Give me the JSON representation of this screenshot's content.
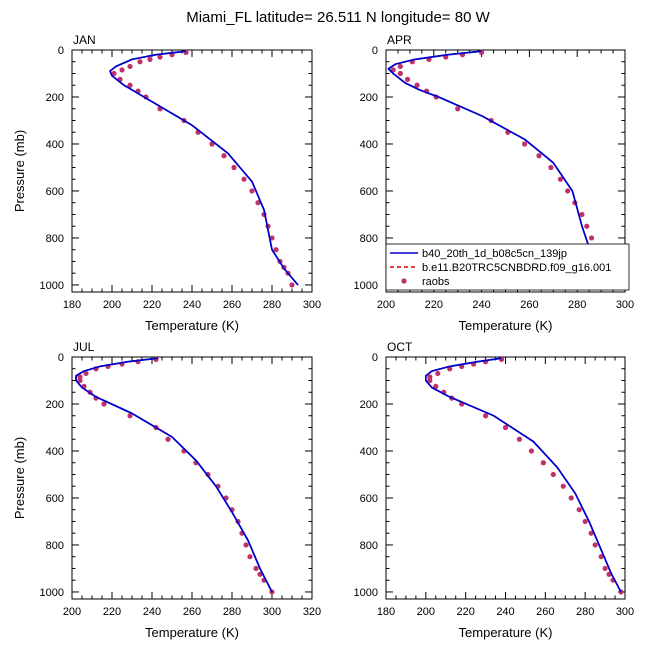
{
  "figure": {
    "title": "Miami_FL  latitude= 26.511 N longitude= 80 W"
  },
  "legend": {
    "entries": [
      {
        "label": "b40_20th_1d_b08c5cn_139jp",
        "color": "#0000cc",
        "style": "solid-line"
      },
      {
        "label": "b.e11.B20TRC5CNBDRD.f09_g16.001",
        "color": "#dd0000",
        "style": "dashed-line"
      },
      {
        "label": "raobs",
        "color": "#c0306a",
        "style": "dots"
      }
    ]
  },
  "chart_data": [
    {
      "type": "line",
      "panel": "JAN",
      "xlabel": "Temperature (K)",
      "ylabel": "Pressure (mb)",
      "xlim": [
        180,
        300
      ],
      "ylim": [
        0,
        1030
      ],
      "y_inverted": true,
      "xticks": [
        180,
        200,
        220,
        240,
        260,
        280,
        300
      ],
      "yticks": [
        0,
        200,
        400,
        600,
        800,
        1000
      ],
      "series": [
        {
          "name": "b40_20th_1d_b08c5cn_139jp",
          "color": "#0000cc",
          "x": [
            237,
            222,
            210,
            202,
            199,
            200,
            206,
            220,
            240,
            258,
            270,
            276,
            280,
            286,
            293
          ],
          "y": [
            5,
            20,
            40,
            70,
            90,
            110,
            150,
            220,
            320,
            440,
            560,
            680,
            850,
            930,
            1000
          ]
        },
        {
          "name": "b.e11.B20TRC5CNBDRD.f09_g16.001",
          "color": "#dd0000",
          "x": [
            237,
            222,
            210,
            202,
            199,
            200,
            206,
            220,
            240,
            258,
            270,
            276,
            280,
            286,
            293
          ],
          "y": [
            5,
            20,
            40,
            70,
            90,
            110,
            150,
            220,
            320,
            440,
            560,
            680,
            850,
            930,
            1000
          ]
        },
        {
          "name": "raobs",
          "color": "#c0306a",
          "x": [
            237,
            230,
            224,
            219,
            214,
            209,
            205,
            201,
            204,
            209,
            213,
            217,
            224,
            236,
            243,
            250,
            256,
            261,
            266,
            270,
            273,
            276,
            278,
            280,
            282,
            284,
            286,
            288,
            290
          ],
          "y": [
            10,
            20,
            30,
            40,
            50,
            70,
            85,
            100,
            125,
            150,
            175,
            200,
            250,
            300,
            350,
            400,
            450,
            500,
            550,
            600,
            650,
            700,
            750,
            800,
            850,
            900,
            925,
            950,
            1000
          ]
        }
      ]
    },
    {
      "type": "line",
      "panel": "APR",
      "xlabel": "Temperature (K)",
      "ylabel": "",
      "xlim": [
        200,
        300
      ],
      "ylim": [
        0,
        1030
      ],
      "y_inverted": true,
      "xticks": [
        200,
        220,
        240,
        260,
        280,
        300
      ],
      "yticks": [
        0,
        200,
        400,
        600,
        800,
        1000
      ],
      "series": [
        {
          "name": "b40_20th_1d_b08c5cn_139jp",
          "color": "#0000cc",
          "x": [
            240,
            226,
            212,
            204,
            201,
            203,
            208,
            214,
            222,
            240,
            258,
            270,
            278,
            282,
            286,
            296
          ],
          "y": [
            5,
            20,
            40,
            60,
            80,
            100,
            140,
            170,
            200,
            280,
            380,
            480,
            600,
            750,
            870,
            1000
          ]
        },
        {
          "name": "b.e11.B20TRC5CNBDRD.f09_g16.001",
          "color": "#dd0000",
          "x": [
            240,
            226,
            212,
            204,
            201,
            203,
            208,
            214,
            222,
            240,
            258,
            270,
            278,
            282,
            286,
            296
          ],
          "y": [
            5,
            20,
            40,
            60,
            80,
            100,
            140,
            170,
            200,
            280,
            380,
            480,
            600,
            750,
            870,
            1000
          ]
        },
        {
          "name": "raobs",
          "color": "#c0306a",
          "x": [
            240,
            232,
            225,
            218,
            211,
            206,
            203,
            206,
            209,
            213,
            217,
            221,
            230,
            244,
            251,
            258,
            264,
            269,
            273,
            276,
            279,
            282,
            284,
            286,
            288,
            290,
            292,
            293,
            296
          ],
          "y": [
            10,
            20,
            30,
            40,
            50,
            70,
            85,
            100,
            125,
            150,
            175,
            200,
            250,
            300,
            350,
            400,
            450,
            500,
            550,
            600,
            650,
            700,
            750,
            800,
            850,
            900,
            925,
            950,
            1000
          ]
        }
      ]
    },
    {
      "type": "line",
      "panel": "JUL",
      "xlabel": "Temperature (K)",
      "ylabel": "Pressure (mb)",
      "xlim": [
        200,
        320
      ],
      "ylim": [
        0,
        1030
      ],
      "y_inverted": true,
      "xticks": [
        200,
        220,
        240,
        260,
        280,
        300,
        320
      ],
      "yticks": [
        0,
        200,
        400,
        600,
        800,
        1000
      ],
      "series": [
        {
          "name": "b40_20th_1d_b08c5cn_139jp",
          "color": "#0000cc",
          "x": [
            243,
            228,
            214,
            206,
            202,
            202,
            205,
            212,
            230,
            250,
            262,
            272,
            280,
            288,
            294,
            300
          ],
          "y": [
            5,
            20,
            40,
            60,
            80,
            100,
            130,
            170,
            240,
            340,
            440,
            550,
            660,
            780,
            900,
            1000
          ]
        },
        {
          "name": "b.e11.B20TRC5CNBDRD.f09_g16.001",
          "color": "#dd0000",
          "x": [
            243,
            228,
            214,
            206,
            202,
            202,
            205,
            212,
            230,
            250,
            262,
            272,
            280,
            288,
            294,
            300
          ],
          "y": [
            5,
            20,
            40,
            60,
            80,
            100,
            130,
            170,
            240,
            340,
            440,
            550,
            660,
            780,
            900,
            1000
          ]
        },
        {
          "name": "raobs",
          "color": "#c0306a",
          "x": [
            242,
            233,
            225,
            218,
            212,
            207,
            204,
            204,
            206,
            209,
            212,
            216,
            229,
            242,
            248,
            256,
            262,
            268,
            273,
            277,
            280,
            283,
            285,
            287,
            289,
            292,
            294,
            296,
            300
          ],
          "y": [
            10,
            20,
            30,
            40,
            50,
            70,
            85,
            100,
            125,
            150,
            175,
            200,
            250,
            300,
            350,
            400,
            450,
            500,
            550,
            600,
            650,
            700,
            750,
            800,
            850,
            900,
            925,
            950,
            1000
          ]
        }
      ]
    },
    {
      "type": "line",
      "panel": "OCT",
      "xlabel": "Temperature (K)",
      "ylabel": "",
      "xlim": [
        180,
        300
      ],
      "ylim": [
        0,
        1030
      ],
      "y_inverted": true,
      "xticks": [
        180,
        200,
        220,
        240,
        260,
        280,
        300
      ],
      "yticks": [
        0,
        200,
        400,
        600,
        800,
        1000
      ],
      "series": [
        {
          "name": "b40_20th_1d_b08c5cn_139jp",
          "color": "#0000cc",
          "x": [
            238,
            226,
            212,
            203,
            200,
            200,
            203,
            212,
            234,
            254,
            266,
            275,
            282,
            288,
            293,
            298
          ],
          "y": [
            5,
            20,
            40,
            60,
            80,
            100,
            130,
            170,
            250,
            360,
            470,
            580,
            700,
            820,
            920,
            1000
          ]
        },
        {
          "name": "b.e11.B20TRC5CNBDRD.f09_g16.001",
          "color": "#dd0000",
          "x": [
            238,
            226,
            212,
            203,
            200,
            200,
            203,
            212,
            234,
            254,
            266,
            275,
            282,
            288,
            293,
            298
          ],
          "y": [
            5,
            20,
            40,
            60,
            80,
            100,
            130,
            170,
            250,
            360,
            470,
            580,
            700,
            820,
            920,
            1000
          ]
        },
        {
          "name": "raobs",
          "color": "#c0306a",
          "x": [
            238,
            230,
            224,
            218,
            212,
            206,
            202,
            202,
            205,
            209,
            213,
            218,
            230,
            240,
            247,
            253,
            259,
            264,
            269,
            273,
            277,
            280,
            283,
            285,
            288,
            290,
            292,
            294,
            298
          ],
          "y": [
            10,
            20,
            30,
            40,
            50,
            70,
            85,
            100,
            125,
            150,
            175,
            200,
            250,
            300,
            350,
            400,
            450,
            500,
            550,
            600,
            650,
            700,
            750,
            800,
            850,
            900,
            925,
            950,
            1000
          ]
        }
      ]
    }
  ]
}
